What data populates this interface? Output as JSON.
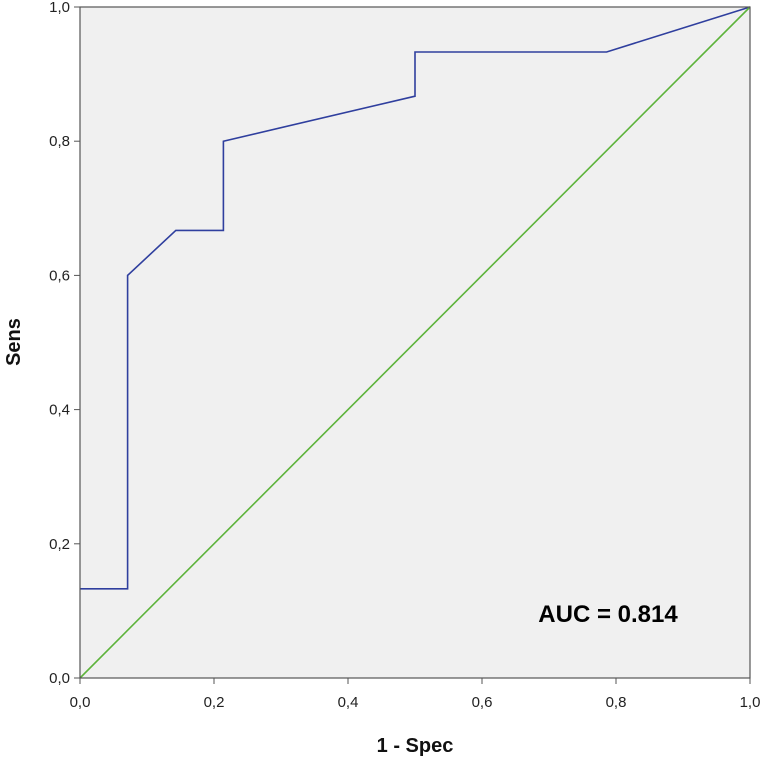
{
  "chart_data": {
    "type": "line",
    "xlabel": "1 - Spec",
    "ylabel": "Sens",
    "xlim": [
      0,
      1
    ],
    "ylim": [
      0,
      1
    ],
    "x_ticks": [
      "0,0",
      "0,2",
      "0,4",
      "0,6",
      "0,8",
      "1,0"
    ],
    "y_ticks": [
      "0,0",
      "0,2",
      "0,4",
      "0,6",
      "0,8",
      "1,0"
    ],
    "x_tick_values": [
      0,
      0.2,
      0.4,
      0.6,
      0.8,
      1.0
    ],
    "y_tick_values": [
      0,
      0.2,
      0.4,
      0.6,
      0.8,
      1.0
    ],
    "grid": false,
    "background_color": "#f0f0f0",
    "annotation": "AUC = 0.814",
    "series": [
      {
        "color": "#2f3f9e",
        "x": [
          0,
          0.071,
          0.071,
          0.143,
          0.214,
          0.214,
          0.5,
          0.5,
          0.786,
          1.0
        ],
        "y": [
          0.133,
          0.133,
          0.6,
          0.667,
          0.667,
          0.8,
          0.867,
          0.933,
          0.933,
          1.0
        ]
      },
      {
        "color": "#5db33b",
        "x": [
          0,
          1
        ],
        "y": [
          0,
          1
        ]
      }
    ]
  }
}
